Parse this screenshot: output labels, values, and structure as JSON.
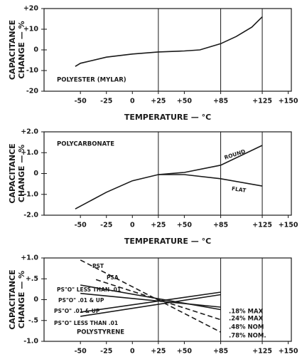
{
  "chart_data": [
    {
      "type": "line",
      "ylabel": [
        "CAPACITANCE",
        "CHANGE — %"
      ],
      "xlabel": "TEMPERATURE — °C",
      "xlim": [
        -85,
        153
      ],
      "ylim": [
        -20,
        20
      ],
      "xticks": [
        -50,
        -25,
        0,
        {
          "value": 25,
          "label": "+25"
        },
        {
          "value": 50,
          "label": "+50"
        },
        {
          "value": 85,
          "label": "+85"
        },
        {
          "value": 125,
          "label": "+125"
        },
        {
          "value": 150,
          "label": "+150"
        }
      ],
      "yticks": [
        {
          "value": 20,
          "label": "+20"
        },
        {
          "value": 10,
          "label": "+10"
        },
        0,
        -10,
        -20
      ],
      "xgrid": [
        25,
        85,
        125
      ],
      "annotations": [
        "POLYESTER (MYLAR)"
      ],
      "series": [
        {
          "color": "#1a1a1a",
          "dashed": false,
          "x": [
            -55,
            -50,
            -25,
            0,
            25,
            50,
            65,
            85,
            100,
            115,
            125
          ],
          "values": [
            -8,
            -6.5,
            -3.5,
            -2,
            -1,
            -0.5,
            0,
            3,
            6.5,
            11,
            16
          ]
        }
      ]
    },
    {
      "type": "line",
      "ylabel": [
        "CAPACITANCE",
        "CHANGE — %"
      ],
      "xlabel": "TEMPERATURE — °C",
      "xlim": [
        -85,
        153
      ],
      "ylim": [
        -2,
        2
      ],
      "xticks": [
        -50,
        -25,
        0,
        {
          "value": 25,
          "label": "+25"
        },
        {
          "value": 50,
          "label": "+50"
        },
        {
          "value": 85,
          "label": "+85"
        },
        {
          "value": 125,
          "label": "+125"
        },
        {
          "value": 150,
          "label": "+150"
        }
      ],
      "yticks": [
        {
          "value": 2,
          "label": "+2.0"
        },
        {
          "value": 1,
          "label": "+1.0"
        },
        0,
        {
          "value": -1,
          "label": "-1.0"
        },
        {
          "value": -2,
          "label": "-2.0"
        }
      ],
      "xgrid": [
        25,
        85,
        125
      ],
      "annotations": [
        "POLYCARBONATE"
      ],
      "series": [
        {
          "name": "ROUND",
          "color": "#1a1a1a",
          "dashed": false,
          "x": [
            -55,
            -25,
            0,
            25,
            50,
            85,
            125
          ],
          "values": [
            -1.7,
            -0.9,
            -0.35,
            -0.05,
            0.05,
            0.4,
            1.35
          ]
        },
        {
          "name": "FLAT",
          "color": "#1a1a1a",
          "dashed": false,
          "x": [
            25,
            50,
            85,
            125
          ],
          "values": [
            -0.05,
            -0.05,
            -0.25,
            -0.6
          ]
        }
      ]
    },
    {
      "type": "line",
      "ylabel": [
        "CAPACITANCE",
        "CHANGE — %"
      ],
      "xlabel": "TEMPERATURE — °C",
      "xlim": [
        -85,
        153
      ],
      "ylim": [
        -1,
        1
      ],
      "xticks": [
        -50,
        -25,
        0,
        {
          "value": 25,
          "label": "+25"
        },
        {
          "value": 50,
          "label": "+50"
        },
        {
          "value": 85,
          "label": "+85"
        },
        {
          "value": 125,
          "label": "+125"
        },
        {
          "value": 150,
          "label": "+150"
        }
      ],
      "yticks": [
        {
          "value": 1,
          "label": "+1.0"
        },
        {
          "value": 0.5,
          "label": "+.5"
        },
        0,
        {
          "value": -0.5,
          "label": "-.5"
        },
        {
          "value": -1,
          "label": "-1.0"
        }
      ],
      "xgrid": [
        25,
        85,
        125
      ],
      "annotations": [
        "POLYSTYRENE",
        ".18% MAX",
        ".24% MAX",
        ".48% NOM",
        ".78% NOM."
      ],
      "series": [
        {
          "name": "PST",
          "color": "#1a1a1a",
          "dashed": true,
          "x": [
            -50,
            85
          ],
          "values": [
            0.95,
            -0.78
          ]
        },
        {
          "name": "PSA",
          "color": "#1a1a1a",
          "dashed": true,
          "x": [
            -35,
            85
          ],
          "values": [
            0.48,
            -0.48
          ]
        },
        {
          "name": "PS\"O\" LESS THAN .01",
          "color": "#1a1a1a",
          "dashed": false,
          "x": [
            -50,
            85
          ],
          "values": [
            0.35,
            -0.24
          ]
        },
        {
          "name": "PS\"O\" .01 & UP",
          "color": "#1a1a1a",
          "dashed": false,
          "x": [
            -50,
            85
          ],
          "values": [
            0.15,
            -0.18
          ]
        },
        {
          "name": "PS\"O\" .01 & UP",
          "color": "#1a1a1a",
          "dashed": false,
          "x": [
            -50,
            85
          ],
          "values": [
            -0.3,
            0.18
          ]
        },
        {
          "name": "PS\"O\" LESS THAN .01",
          "color": "#1a1a1a",
          "dashed": false,
          "x": [
            -50,
            85
          ],
          "values": [
            -0.4,
            0.12
          ]
        }
      ]
    }
  ]
}
